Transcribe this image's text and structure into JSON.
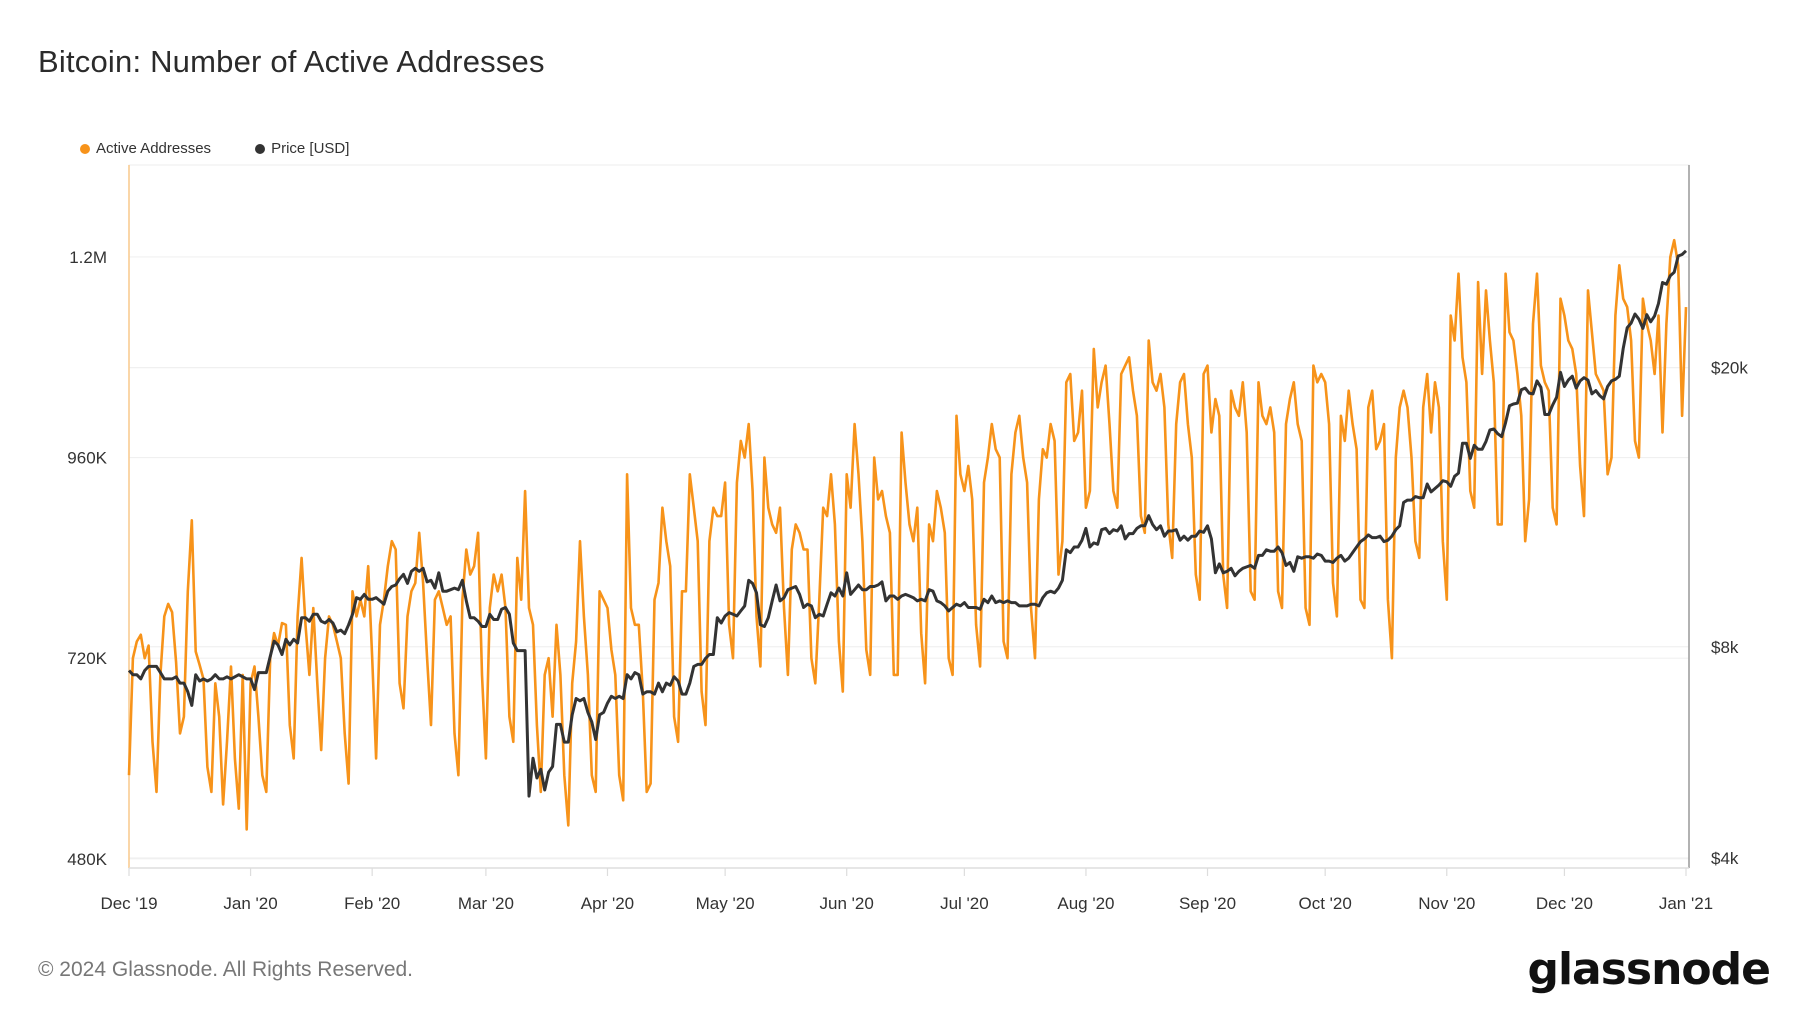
{
  "title": "Bitcoin: Number of Active Addresses",
  "footer": "© 2024 Glassnode. All Rights Reserved.",
  "logo": "glassnode",
  "chart_data": {
    "type": "line",
    "title": "Bitcoin: Number of Active Addresses",
    "x_range": [
      "2019-12-01",
      "2021-01-01"
    ],
    "frequency": "daily",
    "grid": true,
    "legend_placement": "top-left",
    "x_ticks": [
      {
        "date": "2019-12-01",
        "label": "Dec '19"
      },
      {
        "date": "2020-01-01",
        "label": "Jan '20"
      },
      {
        "date": "2020-02-01",
        "label": "Feb '20"
      },
      {
        "date": "2020-03-01",
        "label": "Mar '20"
      },
      {
        "date": "2020-04-01",
        "label": "Apr '20"
      },
      {
        "date": "2020-05-01",
        "label": "May '20"
      },
      {
        "date": "2020-06-01",
        "label": "Jun '20"
      },
      {
        "date": "2020-07-01",
        "label": "Jul '20"
      },
      {
        "date": "2020-08-01",
        "label": "Aug '20"
      },
      {
        "date": "2020-09-01",
        "label": "Sep '20"
      },
      {
        "date": "2020-10-01",
        "label": "Oct '20"
      },
      {
        "date": "2020-11-01",
        "label": "Nov '20"
      },
      {
        "date": "2020-12-01",
        "label": "Dec '20"
      },
      {
        "date": "2021-01-01",
        "label": "Jan '21"
      }
    ],
    "y_left": {
      "scale": "linear",
      "unit": "K",
      "range": [
        469,
        1310
      ],
      "ticks": [
        {
          "value": 480,
          "label": "480K"
        },
        {
          "value": 720,
          "label": "720K"
        },
        {
          "value": 960,
          "label": "960K"
        },
        {
          "value": 1200,
          "label": "1.2M"
        }
      ]
    },
    "y_right": {
      "scale": "log",
      "unit": "USD",
      "range": [
        3870,
        38900
      ],
      "ticks": [
        {
          "value": 4000,
          "label": "$4k"
        },
        {
          "value": 8000,
          "label": "$8k"
        },
        {
          "value": 20000,
          "label": "$20k"
        }
      ]
    },
    "series": [
      {
        "name": "Active Addresses",
        "axis": "left",
        "color": "#f7931a",
        "values": [
          580,
          720,
          740,
          748,
          720,
          735,
          620,
          560,
          700,
          770,
          785,
          775,
          715,
          630,
          650,
          800,
          885,
          728,
          712,
          695,
          590,
          560,
          690,
          650,
          545,
          620,
          710,
          600,
          540,
          700,
          515,
          690,
          710,
          650,
          580,
          560,
          720,
          750,
          735,
          762,
          760,
          640,
          600,
          770,
          840,
          760,
          700,
          780,
          690,
          610,
          720,
          770,
          760,
          740,
          720,
          630,
          570,
          800,
          770,
          790,
          770,
          830,
          720,
          600,
          760,
          790,
          830,
          860,
          850,
          690,
          660,
          770,
          800,
          810,
          870,
          810,
          720,
          640,
          790,
          800,
          780,
          760,
          770,
          630,
          580,
          790,
          850,
          820,
          830,
          870,
          700,
          600,
          780,
          820,
          800,
          820,
          780,
          650,
          620,
          840,
          790,
          920,
          780,
          760,
          640,
          560,
          700,
          720,
          650,
          760,
          700,
          580,
          520,
          690,
          740,
          860,
          770,
          700,
          580,
          560,
          800,
          790,
          780,
          730,
          700,
          580,
          550,
          940,
          780,
          760,
          760,
          680,
          560,
          570,
          790,
          810,
          900,
          860,
          830,
          650,
          620,
          800,
          800,
          940,
          900,
          860,
          680,
          640,
          860,
          900,
          890,
          890,
          930,
          760,
          720,
          930,
          980,
          960,
          1000,
          920,
          770,
          710,
          960,
          900,
          880,
          870,
          900,
          780,
          700,
          850,
          880,
          870,
          850,
          850,
          720,
          690,
          790,
          900,
          890,
          940,
          880,
          740,
          680,
          940,
          900,
          1000,
          940,
          860,
          730,
          700,
          960,
          910,
          920,
          890,
          870,
          700,
          700,
          990,
          930,
          880,
          860,
          900,
          750,
          690,
          880,
          860,
          920,
          900,
          870,
          720,
          700,
          1010,
          940,
          920,
          950,
          910,
          760,
          710,
          930,
          960,
          1000,
          970,
          960,
          740,
          720,
          940,
          990,
          1010,
          960,
          930,
          780,
          720,
          910,
          970,
          960,
          1000,
          980,
          820,
          860,
          1050,
          1060,
          980,
          990,
          1040,
          900,
          920,
          1090,
          1020,
          1050,
          1070,
          1000,
          920,
          900,
          1060,
          1070,
          1080,
          1040,
          1010,
          890,
          870,
          1100,
          1050,
          1040,
          1060,
          1020,
          880,
          840,
          1000,
          1050,
          1060,
          1000,
          960,
          820,
          790,
          1060,
          1070,
          990,
          1030,
          1010,
          820,
          780,
          1040,
          1020,
          1010,
          1050,
          990,
          800,
          790,
          1050,
          1010,
          1000,
          1020,
          990,
          800,
          780,
          1000,
          1030,
          1050,
          1000,
          980,
          780,
          760,
          1070,
          1050,
          1060,
          1050,
          1000,
          810,
          770,
          1010,
          980,
          1040,
          1000,
          970,
          790,
          780,
          1020,
          1040,
          970,
          980,
          1000,
          790,
          720,
          960,
          1020,
          1040,
          1020,
          960,
          860,
          840,
          1020,
          1060,
          990,
          1050,
          1020,
          860,
          790,
          1130,
          1100,
          1180,
          1080,
          1050,
          920,
          900,
          1170,
          1060,
          1160,
          1100,
          1050,
          880,
          880,
          1180,
          1110,
          1100,
          1060,
          1010,
          860,
          910,
          1120,
          1180,
          1070,
          1050,
          1040,
          900,
          880,
          1150,
          1130,
          1100,
          1090,
          1060,
          950,
          890,
          1160,
          1110,
          1060,
          1050,
          1040,
          940,
          960,
          1130,
          1190,
          1150,
          1140,
          1100,
          980,
          960,
          1150,
          1120,
          1100,
          1060,
          1130,
          990,
          1120,
          1200,
          1220,
          1190,
          1010,
          1140
        ]
      },
      {
        "name": "Price [USD]",
        "axis": "right",
        "color": "#333333",
        "values": [
          7400,
          7300,
          7300,
          7200,
          7400,
          7500,
          7500,
          7500,
          7350,
          7200,
          7200,
          7200,
          7250,
          7100,
          7100,
          6900,
          6600,
          7300,
          7150,
          7200,
          7150,
          7200,
          7300,
          7200,
          7200,
          7250,
          7200,
          7250,
          7300,
          7250,
          7200,
          7200,
          6950,
          7350,
          7350,
          7350,
          7750,
          8150,
          8050,
          7800,
          8200,
          8050,
          8200,
          8100,
          8800,
          8800,
          8700,
          8900,
          8900,
          8700,
          8650,
          8750,
          8650,
          8400,
          8450,
          8350,
          8600,
          8900,
          9400,
          9350,
          9500,
          9350,
          9350,
          9400,
          9300,
          9200,
          9600,
          9750,
          9800,
          10000,
          10150,
          9850,
          10250,
          10350,
          10250,
          10350,
          9900,
          9950,
          9700,
          10200,
          9600,
          9600,
          9650,
          9700,
          9650,
          9950,
          9300,
          8800,
          8800,
          8700,
          8550,
          8550,
          8900,
          8750,
          8750,
          9050,
          9100,
          8900,
          8100,
          7900,
          7900,
          7900,
          4900,
          5550,
          5200,
          5350,
          5000,
          5300,
          5400,
          6200,
          6200,
          5850,
          5850,
          6400,
          6750,
          6700,
          6750,
          6450,
          6250,
          5900,
          6400,
          6450,
          6650,
          6800,
          6750,
          6800,
          6750,
          7300,
          7200,
          7350,
          7300,
          6850,
          6900,
          6900,
          6850,
          7100,
          6900,
          7100,
          7050,
          7250,
          7150,
          6850,
          6850,
          7100,
          7500,
          7550,
          7550,
          7700,
          7800,
          7800,
          8800,
          8650,
          8850,
          8950,
          8900,
          8850,
          9000,
          9150,
          9950,
          9850,
          9550,
          8600,
          8550,
          8800,
          9300,
          9800,
          9300,
          9400,
          9650,
          9700,
          9750,
          9500,
          9100,
          9200,
          9150,
          8800,
          8900,
          8850,
          9200,
          9550,
          9450,
          9700,
          9450,
          10200,
          9500,
          9650,
          9800,
          9650,
          9650,
          9750,
          9750,
          9800,
          9900,
          9300,
          9450,
          9450,
          9350,
          9450,
          9500,
          9450,
          9400,
          9300,
          9350,
          9300,
          9650,
          9600,
          9300,
          9250,
          9150,
          9000,
          9100,
          9200,
          9150,
          9250,
          9100,
          9100,
          9100,
          9050,
          9350,
          9250,
          9450,
          9250,
          9300,
          9250,
          9300,
          9250,
          9250,
          9150,
          9150,
          9150,
          9200,
          9200,
          9150,
          9400,
          9550,
          9600,
          9550,
          9700,
          9950,
          11000,
          10900,
          11100,
          11100,
          11350,
          11800,
          11100,
          11250,
          11200,
          11750,
          11800,
          11600,
          11750,
          11700,
          11900,
          11400,
          11600,
          11600,
          11800,
          11900,
          11900,
          12300,
          11950,
          11750,
          11900,
          11500,
          11700,
          11700,
          11750,
          11350,
          11500,
          11350,
          11500,
          11500,
          11700,
          11650,
          11900,
          11400,
          10200,
          10500,
          10200,
          10250,
          10350,
          10100,
          10250,
          10350,
          10400,
          10450,
          10350,
          10800,
          10800,
          11000,
          10950,
          10950,
          11100,
          10900,
          10450,
          10550,
          10250,
          10750,
          10700,
          10750,
          10750,
          10700,
          10850,
          10800,
          10600,
          10600,
          10550,
          10700,
          10800,
          10600,
          10700,
          10900,
          11100,
          11300,
          11400,
          11550,
          11450,
          11450,
          11500,
          11300,
          11350,
          11500,
          11750,
          11900,
          12850,
          12950,
          12950,
          13100,
          13050,
          13050,
          13650,
          13300,
          13450,
          13600,
          13800,
          13750,
          13550,
          14000,
          14150,
          15600,
          15600,
          14850,
          15500,
          15300,
          15300,
          15700,
          16300,
          16350,
          16100,
          15950,
          16700,
          17650,
          17750,
          17800,
          18600,
          18700,
          18400,
          18350,
          19150,
          18750,
          17150,
          17150,
          17700,
          18150,
          19700,
          18800,
          19200,
          19450,
          18700,
          19150,
          19350,
          19200,
          18350,
          18550,
          18250,
          18050,
          18800,
          19150,
          19250,
          19450,
          21300,
          22800,
          23150,
          23850,
          23450,
          22750,
          23800,
          23250,
          23700,
          24700,
          26450,
          26300,
          27050,
          27350,
          28850,
          29000,
          29350
        ]
      }
    ]
  }
}
